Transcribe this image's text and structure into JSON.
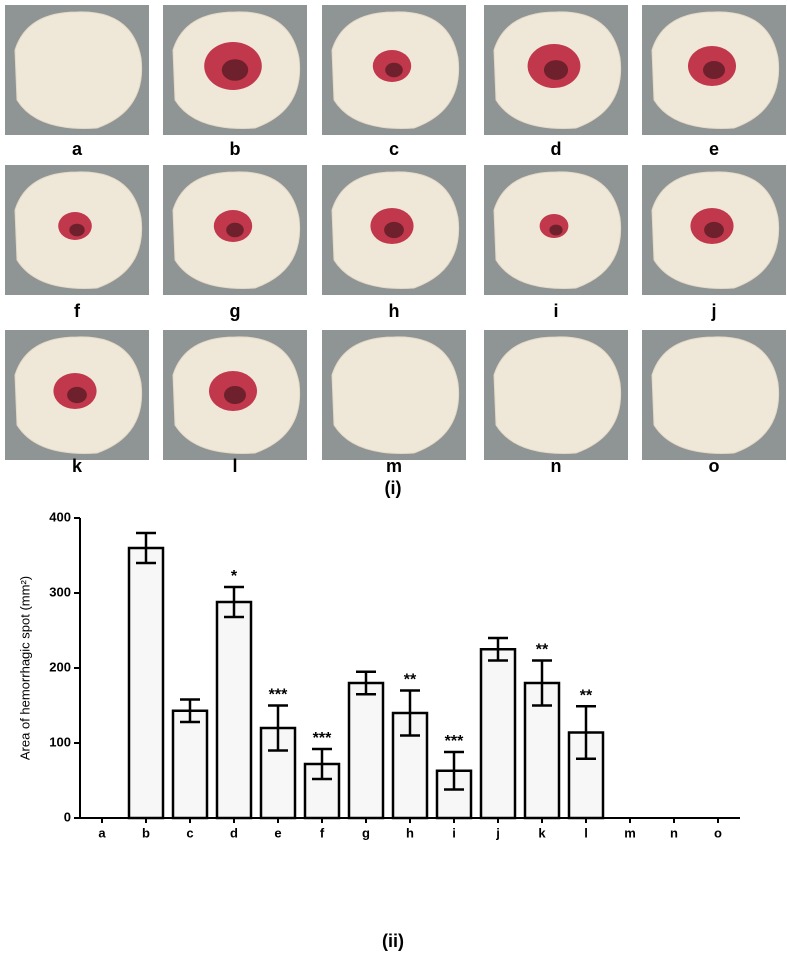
{
  "photo_panels": {
    "labels": [
      "a",
      "b",
      "c",
      "d",
      "e",
      "f",
      "g",
      "h",
      "i",
      "j",
      "k",
      "l",
      "m",
      "n",
      "o"
    ],
    "caption": "(i)"
  },
  "chart_data": {
    "type": "bar",
    "y_label": "Area of hemorrhagic spot (mm²)",
    "x_label": "(ii)",
    "categories": [
      "a",
      "b",
      "c",
      "d",
      "e",
      "f",
      "g",
      "h",
      "i",
      "j",
      "k",
      "l",
      "m",
      "n",
      "o"
    ],
    "values": [
      0,
      360,
      143,
      288,
      120,
      72,
      180,
      140,
      63,
      225,
      180,
      114,
      0,
      0,
      0
    ],
    "errors": [
      null,
      20,
      15,
      20,
      30,
      20,
      15,
      30,
      25,
      15,
      30,
      35,
      null,
      null,
      null
    ],
    "significance": [
      null,
      null,
      null,
      "*",
      "***",
      "***",
      null,
      "**",
      "***",
      null,
      "**",
      "**",
      null,
      null,
      null
    ],
    "color": "#f7f7f7",
    "ylim": [
      0,
      400
    ],
    "yticks": [
      0,
      100,
      200,
      300,
      400
    ]
  }
}
